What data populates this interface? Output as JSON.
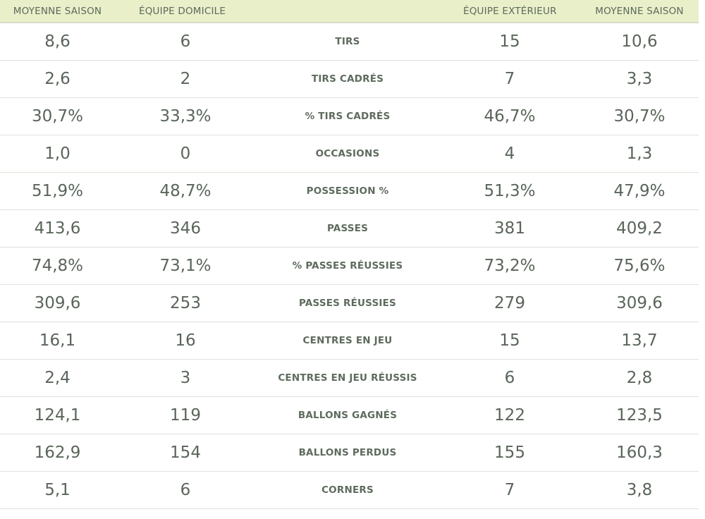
{
  "headers": {
    "home_avg": "MOYENNE SAISON",
    "home_team": "ÉQUIPE DOMICILE",
    "stat": "",
    "away_team": "ÉQUIPE EXTÉRIEUR",
    "away_avg": "MOYENNE SAISON"
  },
  "rows": [
    {
      "home_avg": "8,6",
      "home": "6",
      "label": "TIRS",
      "away": "15",
      "away_avg": "10,6"
    },
    {
      "home_avg": "2,6",
      "home": "2",
      "label": "TIRS CADRÉS",
      "away": "7",
      "away_avg": "3,3"
    },
    {
      "home_avg": "30,7%",
      "home": "33,3%",
      "label": "% TIRS CADRÉS",
      "away": "46,7%",
      "away_avg": "30,7%"
    },
    {
      "home_avg": "1,0",
      "home": "0",
      "label": "OCCASIONS",
      "away": "4",
      "away_avg": "1,3"
    },
    {
      "home_avg": "51,9%",
      "home": "48,7%",
      "label": "POSSESSION %",
      "away": "51,3%",
      "away_avg": "47,9%"
    },
    {
      "home_avg": "413,6",
      "home": "346",
      "label": "PASSES",
      "away": "381",
      "away_avg": "409,2"
    },
    {
      "home_avg": "74,8%",
      "home": "73,1%",
      "label": "% PASSES RÉUSSIES",
      "away": "73,2%",
      "away_avg": "75,6%"
    },
    {
      "home_avg": "309,6",
      "home": "253",
      "label": "PASSES RÉUSSIES",
      "away": "279",
      "away_avg": "309,6"
    },
    {
      "home_avg": "16,1",
      "home": "16",
      "label": "CENTRES EN JEU",
      "away": "15",
      "away_avg": "13,7"
    },
    {
      "home_avg": "2,4",
      "home": "3",
      "label": "CENTRES EN JEU RÉUSSIS",
      "away": "6",
      "away_avg": "2,8"
    },
    {
      "home_avg": "124,1",
      "home": "119",
      "label": "BALLONS GAGNÉS",
      "away": "122",
      "away_avg": "123,5"
    },
    {
      "home_avg": "162,9",
      "home": "154",
      "label": "BALLONS PERDUS",
      "away": "155",
      "away_avg": "160,3"
    },
    {
      "home_avg": "5,1",
      "home": "6",
      "label": "CORNERS",
      "away": "7",
      "away_avg": "3,8"
    }
  ],
  "colors": {
    "header_bg": "#e9efc9",
    "text": "#5a655a",
    "row_divider": "#dfe2da"
  }
}
